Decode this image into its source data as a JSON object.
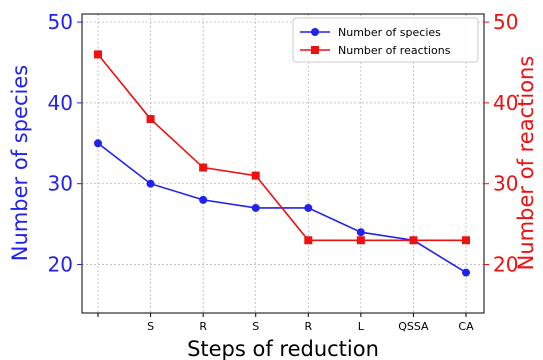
{
  "chart_data": {
    "type": "line",
    "title": "",
    "xlabel": "Steps of reduction",
    "ylabel_left": "Number of species",
    "ylabel_right": "Number of reactions",
    "categories": [
      "",
      "S",
      "R",
      "S",
      "R",
      "L",
      "QSSA",
      "CA"
    ],
    "ylim_left": [
      14,
      51
    ],
    "ylim_right": [
      14,
      51
    ],
    "yticks_left": [
      20,
      30,
      40,
      50
    ],
    "yticks_right": [
      20,
      30,
      40,
      50
    ],
    "grid": true,
    "legend_position": "top-right",
    "series": [
      {
        "name": "Number of species",
        "axis": "left",
        "color": "#2222ee",
        "marker": "circle",
        "values": [
          35,
          30,
          28,
          27,
          27,
          24,
          23,
          19
        ]
      },
      {
        "name": "Number of reactions",
        "axis": "right",
        "color": "#ee1111",
        "marker": "square",
        "values": [
          46,
          38,
          32,
          31,
          23,
          23,
          23,
          23
        ]
      }
    ],
    "left_axis_color": "#2222ee",
    "right_axis_color": "#ee1111"
  }
}
